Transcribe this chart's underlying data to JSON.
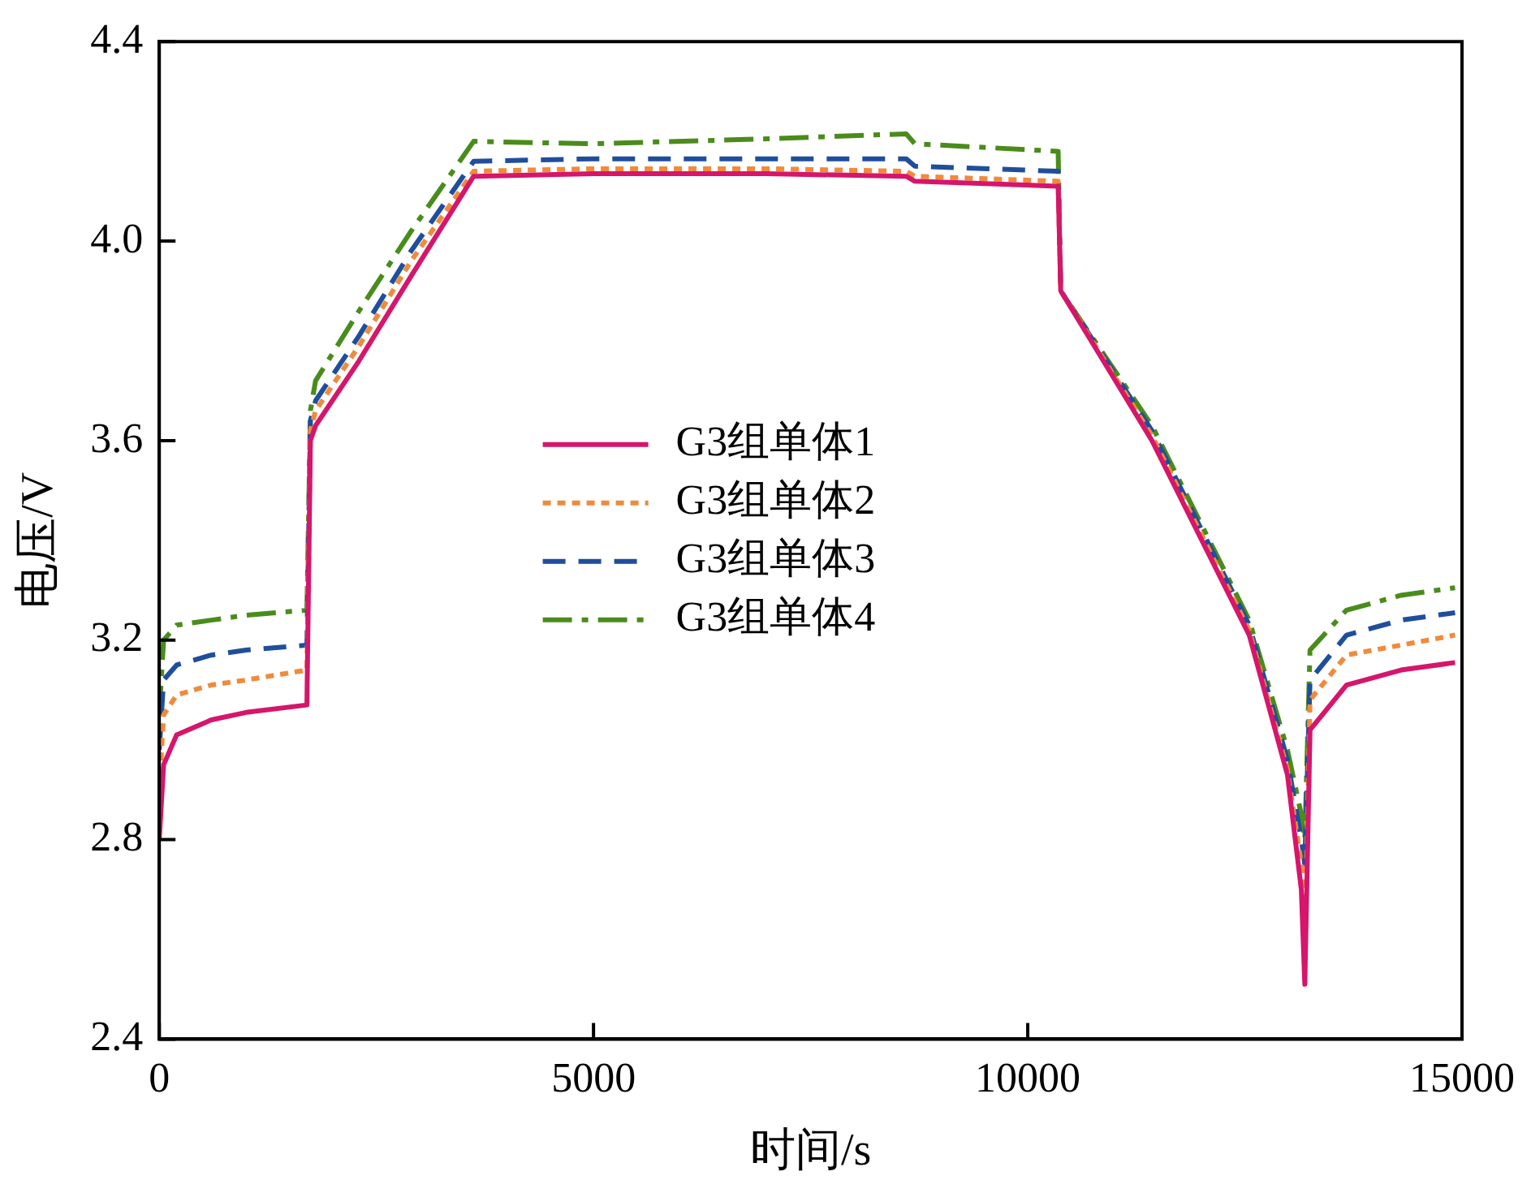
{
  "chart_data": {
    "type": "line",
    "xlabel": "时间/s",
    "ylabel": "电压/V",
    "x": [
      0,
      50,
      200,
      600,
      1000,
      1700,
      1740,
      1800,
      2300,
      2900,
      3620,
      5000,
      7000,
      8600,
      8700,
      10350,
      10380,
      11430,
      12550,
      12990,
      13150,
      13190,
      13250,
      13670,
      14300,
      14920
    ],
    "xlim": [
      0,
      15000
    ],
    "xticks": [
      0,
      5000,
      10000,
      15000
    ],
    "ylim": [
      2.4,
      4.4
    ],
    "yticks": [
      2.4,
      2.8,
      3.2,
      3.6,
      {
        "value": 4,
        "label": "4.0"
      },
      4.4
    ],
    "grid": false,
    "legend": "center",
    "marker": "none",
    "series": [
      {
        "name": "G3组单体1",
        "color": "#d6156b",
        "line_style": "solid",
        "values": [
          2.8,
          2.95,
          3.01,
          3.04,
          3.055,
          3.07,
          3.6,
          3.63,
          3.76,
          3.93,
          4.13,
          4.135,
          4.135,
          4.13,
          4.12,
          4.11,
          3.9,
          3.6,
          3.21,
          2.93,
          2.7,
          2.51,
          3.02,
          3.11,
          3.14,
          3.155
        ]
      },
      {
        "name": "G3组单体2",
        "color": "#f08a3c",
        "line_style": "dotted",
        "values": [
          2.9,
          3.05,
          3.09,
          3.11,
          3.12,
          3.14,
          3.62,
          3.66,
          3.79,
          3.96,
          4.14,
          4.145,
          4.145,
          4.14,
          4.13,
          4.12,
          3.9,
          3.61,
          3.22,
          2.94,
          2.75,
          2.58,
          3.08,
          3.17,
          3.19,
          3.21
        ]
      },
      {
        "name": "G3组单体3",
        "color": "#1f4e9c",
        "line_style": "dashed",
        "values": [
          2.98,
          3.12,
          3.15,
          3.17,
          3.18,
          3.19,
          3.64,
          3.68,
          3.81,
          3.98,
          4.16,
          4.165,
          4.165,
          4.165,
          4.15,
          4.14,
          3.9,
          3.62,
          3.23,
          2.96,
          2.8,
          2.75,
          3.12,
          3.21,
          3.24,
          3.255
        ]
      },
      {
        "name": "G3组单体4",
        "color": "#4a8c1c",
        "line_style": "dashdot",
        "values": [
          3.05,
          3.2,
          3.23,
          3.24,
          3.25,
          3.26,
          3.66,
          3.72,
          3.86,
          4.02,
          4.2,
          4.195,
          4.205,
          4.215,
          4.195,
          4.18,
          3.9,
          3.63,
          3.24,
          2.98,
          2.85,
          2.8,
          3.18,
          3.26,
          3.29,
          3.305
        ]
      }
    ]
  }
}
